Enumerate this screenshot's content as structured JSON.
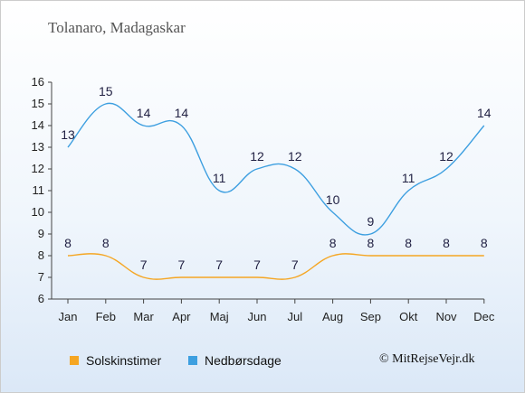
{
  "title": "Tolanaro, Madagaskar",
  "credit": "© MitRejseVejr.dk",
  "colors": {
    "sun": "#f5a623",
    "rain": "#3d9fe0"
  },
  "chart_data": {
    "type": "line",
    "title": "Tolanaro, Madagaskar",
    "categories": [
      "Jan",
      "Feb",
      "Mar",
      "Apr",
      "Maj",
      "Jun",
      "Jul",
      "Aug",
      "Sep",
      "Okt",
      "Nov",
      "Dec"
    ],
    "series": [
      {
        "name": "Solskinstimer",
        "color": "#f5a623",
        "values": [
          8,
          8,
          7,
          7,
          7,
          7,
          7,
          8,
          8,
          8,
          8,
          8
        ]
      },
      {
        "name": "Nedbørsdage",
        "color": "#3d9fe0",
        "values": [
          13,
          15,
          14,
          14,
          11,
          12,
          12,
          10,
          9,
          11,
          12,
          14
        ]
      }
    ],
    "ylim": [
      6,
      16
    ],
    "yticks": [
      6,
      7,
      8,
      9,
      10,
      11,
      12,
      13,
      14,
      15,
      16
    ],
    "legend": "bottom-left"
  }
}
